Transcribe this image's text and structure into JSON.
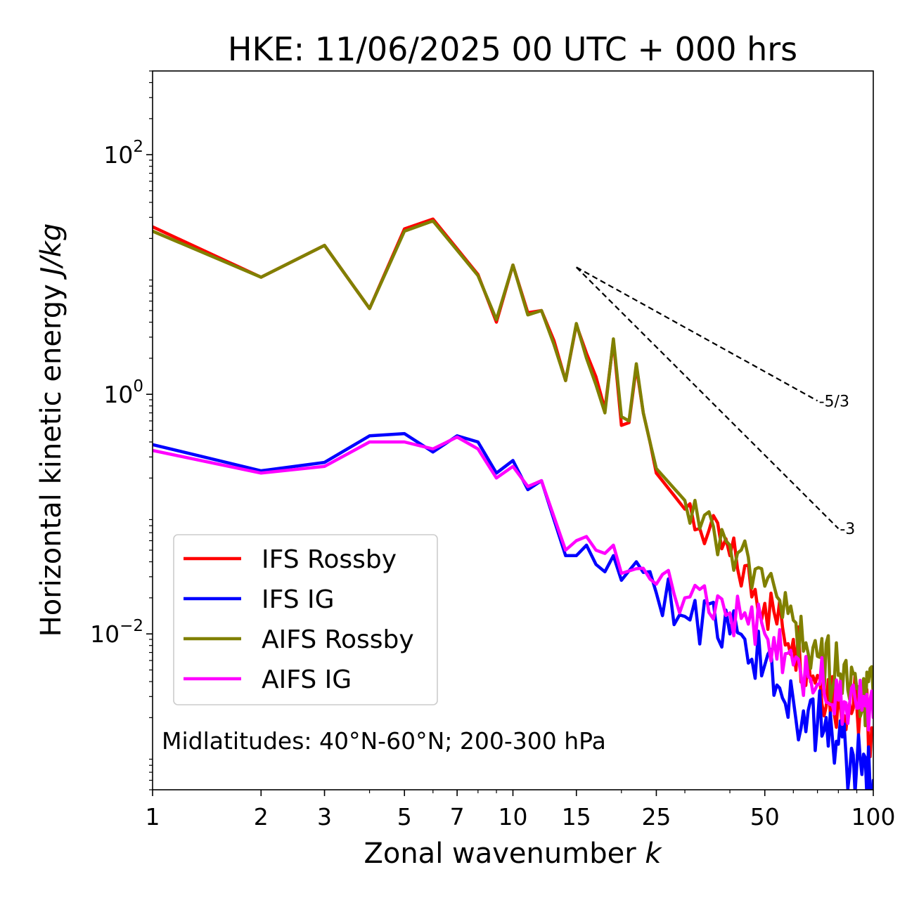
{
  "title": "HKE: 11/06/2025 00 UTC + 000 hrs",
  "chart_data": {
    "type": "line",
    "title": "HKE: 11/06/2025 00 UTC + 000 hrs",
    "xlabel": "Zonal wavenumber",
    "xlabel_var": "k",
    "ylabel": "Horizontal kinetic energy",
    "ylabel_units": "J/kg",
    "xscale": "log",
    "yscale": "log",
    "xlim": [
      1,
      100
    ],
    "ylim": [
      0.0005,
      500
    ],
    "xticks": [
      {
        "value": 1,
        "label": "1"
      },
      {
        "value": 2,
        "label": "2"
      },
      {
        "value": 3,
        "label": "3"
      },
      {
        "value": 5,
        "label": "5"
      },
      {
        "value": 7,
        "label": "7"
      },
      {
        "value": 10,
        "label": "10"
      },
      {
        "value": 15,
        "label": "15"
      },
      {
        "value": 25,
        "label": "25"
      },
      {
        "value": 50,
        "label": "50"
      },
      {
        "value": 100,
        "label": "100"
      }
    ],
    "yticks": [
      {
        "value": 100,
        "base": "10",
        "exp": "2"
      },
      {
        "value": 1,
        "base": "10",
        "exp": "0"
      },
      {
        "value": 0.01,
        "base": "10",
        "exp": "−2"
      }
    ],
    "annotation": "Midlatitudes: 40°N-60°N; 200-300 hPa",
    "legend_position": "lower-left",
    "reference_lines": [
      {
        "label": "-5/3",
        "slope": -1.6667,
        "x0": 15,
        "y0": 11.5,
        "x1": 70
      },
      {
        "label": "-3",
        "slope": -3,
        "x0": 15,
        "y0": 11.5,
        "x1": 80
      }
    ],
    "series": [
      {
        "name": "IFS Rossby",
        "color": "#ff0000",
        "anchors": [
          [
            1,
            25
          ],
          [
            2,
            9.5
          ],
          [
            3,
            17.5
          ],
          [
            4,
            5.2
          ],
          [
            5,
            24
          ],
          [
            6,
            29
          ],
          [
            8,
            10
          ],
          [
            9,
            4
          ],
          [
            10,
            12
          ],
          [
            11,
            4.8
          ],
          [
            12,
            5
          ],
          [
            13,
            2.8
          ],
          [
            14,
            1.3
          ],
          [
            15,
            3.8
          ],
          [
            16,
            2.2
          ],
          [
            17,
            1.4
          ],
          [
            18,
            0.75
          ],
          [
            19,
            2.8
          ],
          [
            20,
            0.55
          ],
          [
            21,
            0.58
          ],
          [
            22,
            1.7
          ],
          [
            23,
            0.7
          ],
          [
            24,
            0.4
          ],
          [
            25,
            0.22
          ],
          [
            30,
            0.11
          ],
          [
            40,
            0.045
          ],
          [
            50,
            0.018
          ],
          [
            60,
            0.009
          ],
          [
            70,
            0.0045
          ],
          [
            80,
            0.003
          ],
          [
            90,
            0.0025
          ],
          [
            100,
            0.0016
          ]
        ],
        "amp": [
          0,
          0,
          0,
          0,
          0,
          0,
          0,
          0,
          0,
          0,
          0,
          0,
          0,
          0,
          0,
          0,
          0,
          0,
          0,
          0,
          0,
          0,
          0,
          0,
          0.2,
          0.22,
          0.24,
          0.27,
          0.3,
          0.3,
          0.3,
          0.3
        ]
      },
      {
        "name": "IFS IG",
        "color": "#0000ff",
        "anchors": [
          [
            1,
            0.38
          ],
          [
            2,
            0.23
          ],
          [
            3,
            0.27
          ],
          [
            4,
            0.45
          ],
          [
            5,
            0.47
          ],
          [
            6,
            0.33
          ],
          [
            7,
            0.45
          ],
          [
            8,
            0.4
          ],
          [
            9,
            0.22
          ],
          [
            10,
            0.28
          ],
          [
            11,
            0.16
          ],
          [
            12,
            0.19
          ],
          [
            13,
            0.09
          ],
          [
            14,
            0.045
          ],
          [
            15,
            0.045
          ],
          [
            16,
            0.055
          ],
          [
            17,
            0.038
          ],
          [
            18,
            0.033
          ],
          [
            19,
            0.045
          ],
          [
            20,
            0.028
          ],
          [
            22,
            0.04
          ],
          [
            25,
            0.022
          ],
          [
            30,
            0.014
          ],
          [
            40,
            0.01
          ],
          [
            50,
            0.0055
          ],
          [
            60,
            0.0028
          ],
          [
            70,
            0.0018
          ],
          [
            80,
            0.0012
          ],
          [
            90,
            0.0008
          ],
          [
            100,
            0.0006
          ]
        ],
        "amp": [
          0,
          0,
          0,
          0,
          0,
          0,
          0,
          0,
          0,
          0,
          0,
          0,
          0,
          0,
          0,
          0,
          0,
          0,
          0,
          0,
          0.1,
          0.2,
          0.22,
          0.25,
          0.28,
          0.3,
          0.3,
          0.3,
          0.3,
          0.3
        ]
      },
      {
        "name": "AIFS Rossby",
        "color": "#808000",
        "anchors": [
          [
            1,
            23
          ],
          [
            2,
            9.5
          ],
          [
            3,
            17.5
          ],
          [
            4,
            5.2
          ],
          [
            5,
            23
          ],
          [
            6,
            28
          ],
          [
            8,
            9.8
          ],
          [
            9,
            4.2
          ],
          [
            10,
            12
          ],
          [
            11,
            4.6
          ],
          [
            12,
            5
          ],
          [
            13,
            2.6
          ],
          [
            14,
            1.3
          ],
          [
            15,
            3.9
          ],
          [
            16,
            2
          ],
          [
            17,
            1.2
          ],
          [
            18,
            0.7
          ],
          [
            19,
            2.9
          ],
          [
            20,
            0.65
          ],
          [
            21,
            0.6
          ],
          [
            22,
            1.8
          ],
          [
            23,
            0.7
          ],
          [
            24,
            0.4
          ],
          [
            25,
            0.24
          ],
          [
            30,
            0.13
          ],
          [
            40,
            0.055
          ],
          [
            50,
            0.025
          ],
          [
            60,
            0.013
          ],
          [
            70,
            0.0065
          ],
          [
            80,
            0.0045
          ],
          [
            90,
            0.0035
          ],
          [
            100,
            0.003
          ]
        ],
        "amp": [
          0,
          0,
          0,
          0,
          0,
          0,
          0,
          0,
          0,
          0,
          0,
          0,
          0,
          0,
          0,
          0,
          0,
          0,
          0,
          0,
          0,
          0,
          0,
          0,
          0.2,
          0.22,
          0.24,
          0.27,
          0.3,
          0.3,
          0.3,
          0.3
        ]
      },
      {
        "name": "AIFS IG",
        "color": "#ff00ff",
        "anchors": [
          [
            1,
            0.34
          ],
          [
            2,
            0.22
          ],
          [
            3,
            0.25
          ],
          [
            4,
            0.4
          ],
          [
            5,
            0.4
          ],
          [
            6,
            0.35
          ],
          [
            7,
            0.44
          ],
          [
            8,
            0.35
          ],
          [
            9,
            0.2
          ],
          [
            10,
            0.25
          ],
          [
            11,
            0.17
          ],
          [
            12,
            0.19
          ],
          [
            13,
            0.095
          ],
          [
            14,
            0.05
          ],
          [
            15,
            0.06
          ],
          [
            16,
            0.065
          ],
          [
            17,
            0.05
          ],
          [
            18,
            0.047
          ],
          [
            19,
            0.055
          ],
          [
            20,
            0.032
          ],
          [
            22,
            0.035
          ],
          [
            25,
            0.026
          ],
          [
            30,
            0.02
          ],
          [
            40,
            0.015
          ],
          [
            50,
            0.01
          ],
          [
            60,
            0.0055
          ],
          [
            70,
            0.0038
          ],
          [
            80,
            0.0028
          ],
          [
            90,
            0.0024
          ],
          [
            100,
            0.002
          ]
        ],
        "amp": [
          0,
          0,
          0,
          0,
          0,
          0,
          0,
          0,
          0,
          0,
          0,
          0,
          0,
          0,
          0,
          0,
          0,
          0,
          0,
          0,
          0.1,
          0.18,
          0.2,
          0.22,
          0.24,
          0.25,
          0.25,
          0.25,
          0.25,
          0.25
        ]
      }
    ]
  }
}
